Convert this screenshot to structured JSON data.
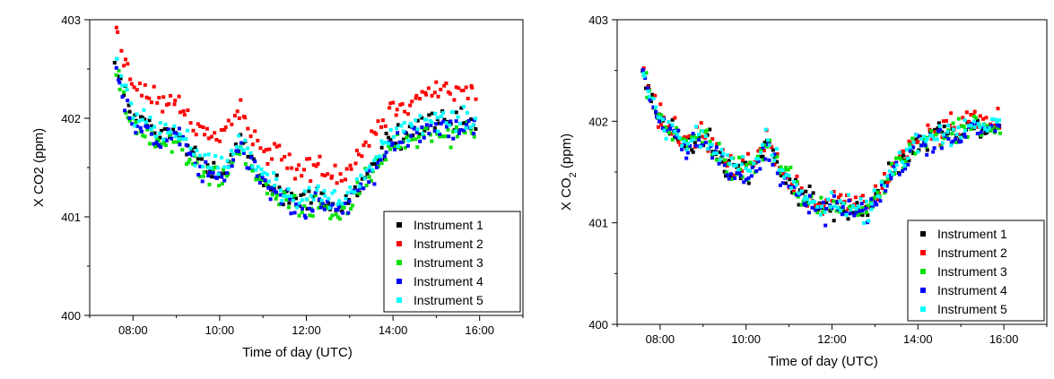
{
  "chart_data": [
    {
      "type": "scatter",
      "title": "",
      "xlabel": "Time of day (UTC)",
      "ylabel": "X CO2 (ppm)",
      "ylabel_parts": [
        {
          "text": "X CO2 (ppm)",
          "sub": false
        }
      ],
      "x_ticks": [
        "08:00",
        "10:00",
        "12:00",
        "14:00",
        "16:00"
      ],
      "x_tick_hours": [
        8,
        10,
        12,
        14,
        16
      ],
      "y_ticks": [
        "400",
        "401",
        "402",
        "403"
      ],
      "y_tick_values": [
        400,
        401,
        402,
        403
      ],
      "xlim_hours": [
        7.0,
        17.0
      ],
      "ylim": [
        400,
        403
      ],
      "grid": false,
      "legend_position": "bottom-right",
      "series": [
        {
          "name": "Instrument 1",
          "color": "#000000"
        },
        {
          "name": "Instrument 2",
          "color": "#ff0000"
        },
        {
          "name": "Instrument 3",
          "color": "#00e000"
        },
        {
          "name": "Instrument 4",
          "color": "#0000ff"
        },
        {
          "name": "Instrument 5",
          "color": "#00ffff"
        }
      ],
      "trend_hours": [
        7.6,
        7.8,
        8.0,
        8.3,
        8.6,
        9.0,
        9.3,
        9.6,
        10.0,
        10.3,
        10.5,
        10.8,
        11.1,
        11.5,
        11.8,
        12.2,
        12.5,
        12.8,
        13.1,
        13.5,
        13.9,
        14.3,
        14.8,
        15.3,
        15.9
      ],
      "trend_values": [
        402.6,
        402.25,
        402.0,
        401.95,
        401.8,
        401.85,
        401.7,
        401.55,
        401.45,
        401.6,
        401.75,
        401.5,
        401.35,
        401.25,
        401.15,
        401.2,
        401.15,
        401.1,
        401.25,
        401.5,
        401.75,
        401.85,
        401.95,
        401.95,
        401.95
      ],
      "offsets": [
        0.0,
        0.32,
        -0.08,
        -0.06,
        0.04
      ],
      "spread": 0.12
    },
    {
      "type": "scatter",
      "title": "",
      "xlabel": "Time of day (UTC)",
      "ylabel": "X CO2 (ppm)",
      "ylabel_parts": [
        {
          "text": "X CO",
          "sub": false
        },
        {
          "text": "2",
          "sub": true
        },
        {
          "text": " (ppm)",
          "sub": false
        }
      ],
      "x_ticks": [
        "08:00",
        "10:00",
        "12:00",
        "14:00",
        "16:00"
      ],
      "x_tick_hours": [
        8,
        10,
        12,
        14,
        16
      ],
      "y_ticks": [
        "400",
        "401",
        "402",
        "403"
      ],
      "y_tick_values": [
        400,
        401,
        402,
        403
      ],
      "xlim_hours": [
        7.0,
        17.0
      ],
      "ylim": [
        400,
        403
      ],
      "grid": false,
      "legend_position": "bottom-right",
      "series": [
        {
          "name": "Instrument 1",
          "color": "#000000"
        },
        {
          "name": "Instrument 2",
          "color": "#ff0000"
        },
        {
          "name": "Instrument 3",
          "color": "#00e000"
        },
        {
          "name": "Instrument 4",
          "color": "#0000ff"
        },
        {
          "name": "Instrument 5",
          "color": "#00ffff"
        }
      ],
      "trend_hours": [
        7.6,
        7.8,
        8.0,
        8.3,
        8.6,
        9.0,
        9.3,
        9.6,
        10.0,
        10.3,
        10.5,
        10.8,
        11.1,
        11.5,
        11.8,
        12.2,
        12.5,
        12.8,
        13.1,
        13.5,
        13.9,
        14.3,
        14.8,
        15.3,
        15.9
      ],
      "trend_values": [
        402.5,
        402.2,
        402.0,
        401.9,
        401.75,
        401.85,
        401.7,
        401.55,
        401.5,
        401.6,
        401.8,
        401.5,
        401.35,
        401.2,
        401.15,
        401.2,
        401.15,
        401.1,
        401.3,
        401.55,
        401.75,
        401.85,
        401.9,
        401.95,
        401.95
      ],
      "offsets": [
        0.0,
        0.03,
        0.0,
        -0.04,
        0.01
      ],
      "spread": 0.12
    }
  ]
}
